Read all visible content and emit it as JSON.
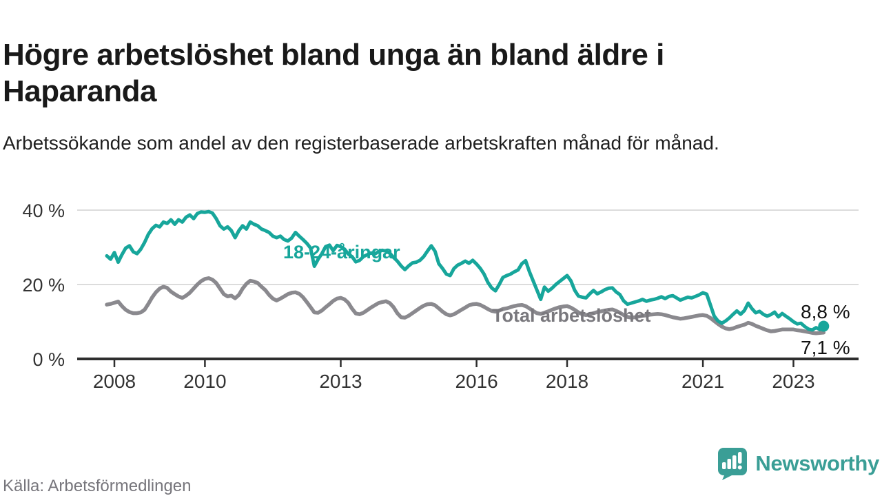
{
  "header": {
    "title": "Högre arbetslöshet bland unga än bland äldre i Haparanda",
    "subtitle": "Arbetssökande som andel av den registerbaserade arbetskraften månad för månad."
  },
  "footer": {
    "source": "Källa: Arbetsförmedlingen",
    "brand": "Newsworthy",
    "brand_color": "#3a9e96",
    "logo_icon": "speech-bubble-bar-chart"
  },
  "chart_data": {
    "type": "line",
    "title": "Högre arbetslöshet bland unga än bland äldre i Haparanda",
    "subtitle": "Arbetssökande som andel av den registerbaserade arbetskraften månad för månad.",
    "unit": "%",
    "grid": "horizontal",
    "legend_position": "inline-labels",
    "x_start_month": "2007-11",
    "x_end_month": "2023-09",
    "x_ticks": [
      2008,
      2010,
      2013,
      2016,
      2018,
      2021,
      2023
    ],
    "x_tick_labels": [
      "2008",
      "2010",
      "2013",
      "2016",
      "2018",
      "2021",
      "2023"
    ],
    "y_ticks": [
      {
        "value": 0,
        "label": "0 %"
      },
      {
        "value": 20,
        "label": "20 %"
      },
      {
        "value": 40,
        "label": "40 %"
      }
    ],
    "ylim": [
      0,
      44
    ],
    "colors": {
      "young": "#17a69b",
      "total": "#8a898e",
      "total_label": "#79787d",
      "grid": "#dcdcdc",
      "axis": "#2e2e2e",
      "tick_text": "#333333",
      "annotation": "#111111"
    },
    "series": [
      {
        "name": "18-24-åringar",
        "inline_label": "18-24-åringar",
        "end_label": "8,8 %",
        "end_value": 8.8,
        "values": [
          27.7,
          26.8,
          28.6,
          26.0,
          28.0,
          29.8,
          30.4,
          28.8,
          28.3,
          29.5,
          31.3,
          33.5,
          35.0,
          35.9,
          35.5,
          36.8,
          36.4,
          37.4,
          36.2,
          37.4,
          36.8,
          38.1,
          38.7,
          37.7,
          39.1,
          39.5,
          39.4,
          39.6,
          39.2,
          37.7,
          35.8,
          34.9,
          35.5,
          34.5,
          32.6,
          34.5,
          35.8,
          34.9,
          36.8,
          36.2,
          35.8,
          34.9,
          34.5,
          34.0,
          33.0,
          32.6,
          33.0,
          32.1,
          31.7,
          32.5,
          34.0,
          33.0,
          32.1,
          31.1,
          29.8,
          24.9,
          26.8,
          28.3,
          30.2,
          30.6,
          29.1,
          30.5,
          30.2,
          29.5,
          28.2,
          27.5,
          26.1,
          26.5,
          27.5,
          28.0,
          28.5,
          28.2,
          28.8,
          29.2,
          29.0,
          28.4,
          27.3,
          26.3,
          25.0,
          24.0,
          25.0,
          25.8,
          26.0,
          26.5,
          27.5,
          29.0,
          30.4,
          28.9,
          25.6,
          24.3,
          22.8,
          22.4,
          24.3,
          25.2,
          25.7,
          26.3,
          25.7,
          26.5,
          25.5,
          24.3,
          22.8,
          20.6,
          19.1,
          18.3,
          20.0,
          21.9,
          22.4,
          22.8,
          23.4,
          23.9,
          25.6,
          26.4,
          23.5,
          21.0,
          18.5,
          16.0,
          19.3,
          18.2,
          19.0,
          20.0,
          20.8,
          21.6,
          22.4,
          21.0,
          18.5,
          16.9,
          16.6,
          16.4,
          17.5,
          18.4,
          17.5,
          18.0,
          18.6,
          19.0,
          19.1,
          18.0,
          17.3,
          15.6,
          14.7,
          15.0,
          15.3,
          15.6,
          16.0,
          15.5,
          15.8,
          16.0,
          16.3,
          16.7,
          16.2,
          16.8,
          17.0,
          16.4,
          15.8,
          16.2,
          16.6,
          16.4,
          16.8,
          17.2,
          17.8,
          17.4,
          14.5,
          11.5,
          10.2,
          9.6,
          10.2,
          11.0,
          12.0,
          12.9,
          12.0,
          13.0,
          15.0,
          13.5,
          12.4,
          12.8,
          12.0,
          11.5,
          11.9,
          12.6,
          11.3,
          12.2,
          11.5,
          10.8,
          10.0,
          9.4,
          9.6,
          8.7,
          8.0,
          7.8,
          8.4,
          7.9,
          8.8
        ]
      },
      {
        "name": "Total arbetslöshet",
        "inline_label": "Total arbetslöshet",
        "end_label": "7,1 %",
        "end_value": 7.1,
        "values": [
          14.6,
          14.8,
          15.1,
          15.4,
          14.2,
          13.2,
          12.6,
          12.3,
          12.3,
          12.5,
          13.2,
          14.8,
          16.5,
          17.9,
          18.9,
          19.4,
          19.1,
          18.1,
          17.4,
          16.8,
          16.4,
          17.0,
          17.8,
          18.9,
          20.0,
          20.9,
          21.5,
          21.7,
          21.3,
          20.4,
          18.9,
          17.4,
          16.8,
          17.0,
          16.3,
          17.2,
          18.9,
          20.2,
          21.0,
          20.8,
          20.4,
          19.4,
          18.5,
          17.2,
          16.2,
          15.7,
          16.2,
          16.8,
          17.4,
          17.8,
          17.9,
          17.5,
          16.6,
          15.3,
          13.9,
          12.5,
          12.4,
          13.0,
          13.9,
          14.7,
          15.6,
          16.2,
          16.4,
          16.0,
          15.1,
          13.5,
          12.2,
          12.0,
          12.4,
          13.1,
          13.8,
          14.4,
          15.0,
          15.3,
          15.5,
          15.0,
          13.9,
          12.3,
          11.2,
          11.1,
          11.6,
          12.3,
          13.0,
          13.7,
          14.3,
          14.7,
          14.8,
          14.4,
          13.6,
          12.7,
          12.0,
          11.7,
          12.0,
          12.6,
          13.2,
          13.8,
          14.4,
          14.7,
          14.8,
          14.5,
          14.0,
          13.4,
          12.9,
          12.7,
          13.0,
          13.4,
          13.6,
          13.9,
          14.2,
          14.4,
          14.5,
          14.2,
          13.6,
          12.9,
          12.3,
          12.1,
          12.4,
          12.8,
          13.2,
          13.6,
          13.9,
          14.1,
          14.2,
          13.8,
          13.2,
          12.5,
          12.0,
          11.8,
          12.0,
          12.3,
          12.6,
          12.8,
          13.0,
          13.2,
          13.3,
          12.9,
          12.4,
          11.8,
          11.3,
          11.1,
          11.2,
          11.4,
          11.6,
          11.7,
          11.9,
          12.0,
          12.1,
          12.0,
          11.8,
          11.5,
          11.2,
          11.0,
          10.8,
          10.9,
          11.1,
          11.3,
          11.5,
          11.7,
          11.8,
          11.6,
          11.0,
          10.2,
          9.4,
          8.7,
          8.2,
          8.0,
          8.2,
          8.6,
          8.9,
          9.2,
          9.7,
          9.4,
          8.9,
          8.5,
          8.1,
          7.7,
          7.4,
          7.5,
          7.7,
          7.9,
          7.9,
          7.9,
          7.9,
          7.7,
          7.6,
          7.4,
          7.2,
          7.0,
          6.9,
          7.0,
          7.1
        ]
      }
    ]
  }
}
